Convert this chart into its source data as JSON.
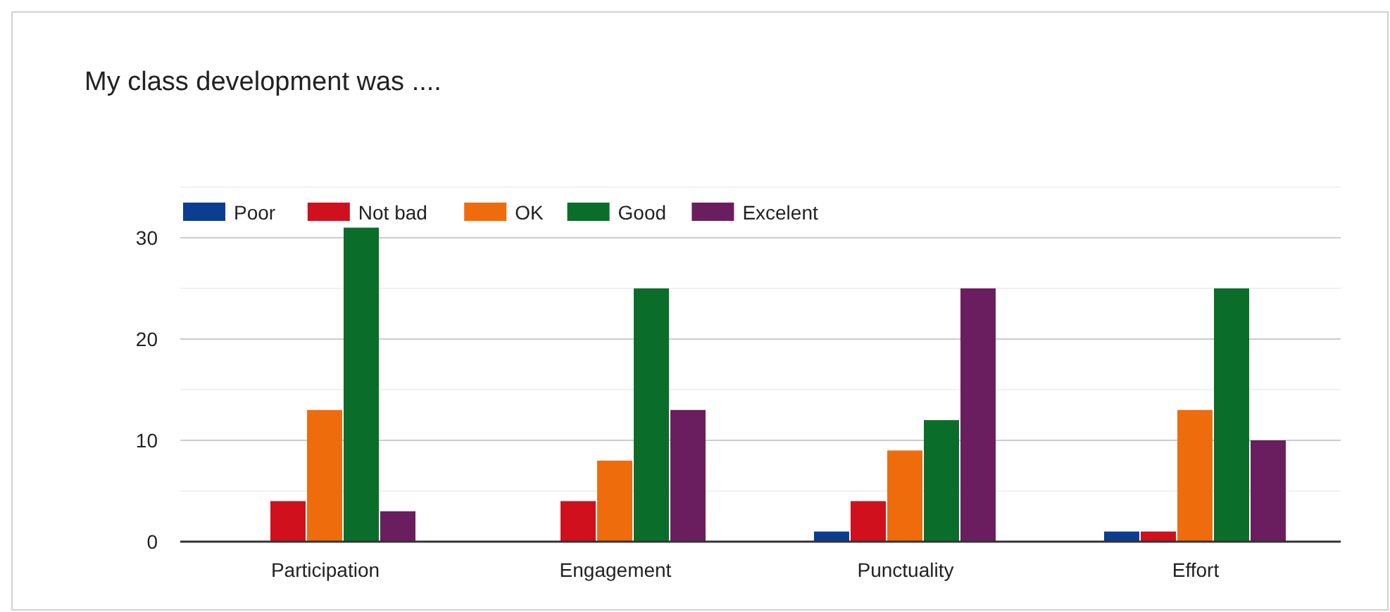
{
  "chart_data": {
    "type": "bar",
    "title": "My class development was ....",
    "categories": [
      "Participation",
      "Engagement",
      "Punctuality",
      "Effort"
    ],
    "series": [
      {
        "name": "Poor",
        "color": "#0b3d91",
        "values": [
          0,
          0,
          1,
          1
        ]
      },
      {
        "name": "Not bad",
        "color": "#d0101c",
        "values": [
          4,
          4,
          4,
          1
        ]
      },
      {
        "name": "OK",
        "color": "#ef6c0c",
        "values": [
          13,
          8,
          9,
          13
        ]
      },
      {
        "name": "Good",
        "color": "#0a6e2a",
        "values": [
          31,
          25,
          12,
          25
        ]
      },
      {
        "name": "Excelent",
        "color": "#6b1e5f",
        "values": [
          3,
          13,
          25,
          10
        ]
      }
    ],
    "ylim": [
      0,
      35
    ],
    "yticks": [
      0,
      {
        "value": 5,
        "label": null
      },
      10,
      {
        "value": 15,
        "label": null
      },
      20,
      {
        "value": 25,
        "label": null
      },
      30,
      {
        "value": 35,
        "label": null
      }
    ],
    "grid": "y",
    "legend": "top left"
  }
}
